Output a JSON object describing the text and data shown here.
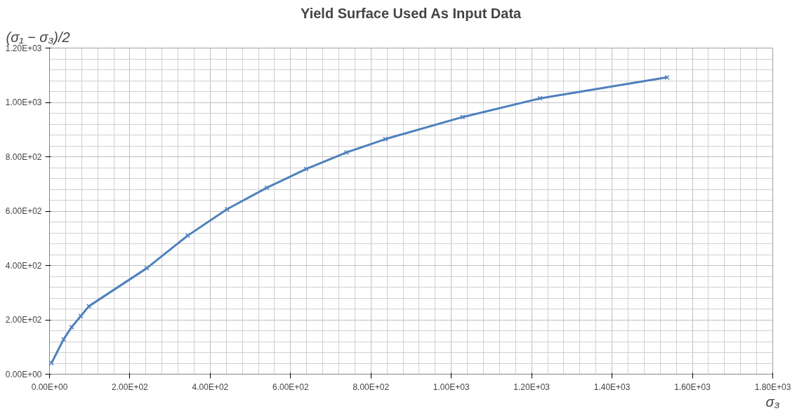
{
  "chart_data": {
    "type": "line",
    "title": "Yield Surface Used As Input Data",
    "xlabel": "σ₃",
    "ylabel": "(σ₁ − σ₃)/2",
    "x": [
      5,
      35,
      55,
      78,
      98,
      242,
      344,
      442,
      541,
      639,
      739,
      836,
      1028,
      1221,
      1537
    ],
    "series": [
      {
        "color": "#4f81bd",
        "values": [
          41,
          128,
          173,
          214,
          250,
          390,
          510,
          607,
          686,
          755,
          816,
          865,
          946,
          1015,
          1092
        ]
      }
    ],
    "xlim": [
      0,
      1800
    ],
    "ylim": [
      0,
      1200
    ],
    "xticks": [
      {
        "value": 0,
        "label": "0.00E+00"
      },
      {
        "value": 200,
        "label": "2.00E+02"
      },
      {
        "value": 400,
        "label": "4.00E+02"
      },
      {
        "value": 600,
        "label": "6.00E+02"
      },
      {
        "value": 800,
        "label": "8.00E+02"
      },
      {
        "value": 1000,
        "label": "1.00E+03"
      },
      {
        "value": 1200,
        "label": "1.20E+03"
      },
      {
        "value": 1400,
        "label": "1.40E+03"
      },
      {
        "value": 1600,
        "label": "1.60E+03"
      },
      {
        "value": 1800,
        "label": "1.80E+03"
      }
    ],
    "yticks": [
      {
        "value": 0,
        "label": "0.00E+00"
      },
      {
        "value": 200,
        "label": "2.00E+02"
      },
      {
        "value": 400,
        "label": "4.00E+02"
      },
      {
        "value": 600,
        "label": "6.00E+02"
      },
      {
        "value": 800,
        "label": "8.00E+02"
      },
      {
        "value": 1000,
        "label": "1.00E+03"
      },
      {
        "value": 1200,
        "label": "1.20E+03"
      }
    ],
    "grid": true,
    "marker": "cross",
    "line_style": "solid"
  }
}
